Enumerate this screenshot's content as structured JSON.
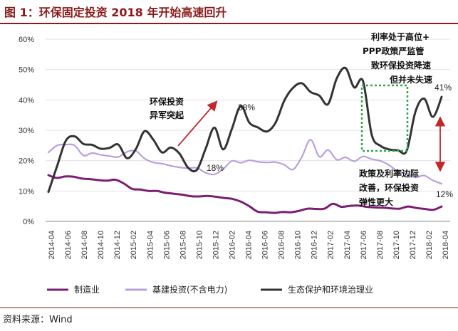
{
  "chart_data": {
    "type": "line",
    "title": "图 1：环保固定投资 2018 年开始高速回升",
    "source": "资料来源：Wind",
    "ylim": [
      0,
      60
    ],
    "yticks": [
      "0%",
      "10%",
      "20%",
      "30%",
      "40%",
      "50%",
      "60%"
    ],
    "x_tick_labels": [
      "2014-04",
      "2014-06",
      "2014-08",
      "2014-10",
      "2014-12",
      "2015-02",
      "2015-04",
      "2015-06",
      "2015-08",
      "2015-10",
      "2015-12",
      "2016-02",
      "2016-04",
      "2016-06",
      "2016-08",
      "2016-10",
      "2016-12",
      "2017-02",
      "2017-04",
      "2017-06",
      "2017-08",
      "2017-10",
      "2017-12",
      "2018-02",
      "2018-04"
    ],
    "series": [
      {
        "name": "制造业",
        "color": "#7a1f73",
        "values": [
          15.2,
          14.3,
          14.8,
          14.7,
          14.1,
          13.9,
          13.6,
          13.4,
          13.7,
          12.5,
          10.7,
          10.5,
          10.0,
          10.0,
          9.4,
          9.1,
          8.8,
          8.3,
          8.2,
          8.4,
          8.1,
          7.7,
          7.4,
          6.5,
          5.0,
          3.2,
          3.0,
          2.8,
          3.1,
          3.0,
          3.5,
          4.2,
          4.1,
          4.2,
          5.8,
          4.8,
          5.1,
          5.2,
          4.8,
          4.6,
          4.5,
          4.3,
          4.2,
          4.9,
          4.4,
          4.1,
          3.8,
          4.9
        ]
      },
      {
        "name": "基建投资(不含电力)",
        "color": "#b9a0dd",
        "values": [
          22.7,
          25.0,
          25.3,
          25.0,
          21.7,
          22.5,
          21.9,
          21.5,
          21.2,
          22.9,
          23.2,
          20.7,
          19.4,
          19.0,
          18.3,
          17.8,
          17.5,
          17.6,
          16.0,
          15.5,
          17.2,
          19.9,
          19.3,
          20.1,
          19.6,
          19.4,
          19.5,
          18.6,
          17.1,
          21.2,
          26.9,
          21.3,
          23.5,
          20.3,
          21.1,
          19.8,
          21.4,
          20.5,
          19.9,
          18.5,
          16.4,
          15.7,
          14.5,
          15.1,
          13.5,
          12.4
        ]
      },
      {
        "name": "生态保护和环境治理业",
        "color": "#333333",
        "values": [
          9.7,
          18.3,
          26.6,
          28.0,
          25.5,
          25.2,
          23.9,
          24.2,
          25.3,
          20.8,
          23.8,
          29.7,
          26.9,
          22.7,
          24.3,
          22.3,
          17.6,
          17.0,
          24.0,
          30.9,
          23.7,
          30.5,
          38.0,
          32.5,
          30.9,
          29.6,
          32.5,
          39.8,
          44.0,
          45.5,
          42.6,
          41.4,
          38.6,
          47.1,
          50.5,
          44.1,
          46.2,
          28.5,
          24.9,
          23.7,
          23.4,
          23.2,
          36.1,
          40.4,
          34.4,
          41.0
        ]
      }
    ],
    "annotations": {
      "env_surge": [
        "环保投资",
        "异军突起"
      ],
      "policy_slowdown": [
        "利率处于高位+",
        "PPP政策严监管",
        "致环保投资降速",
        "但并未失速"
      ],
      "policy_rebound": [
        "政策及利率边际",
        "改善，环保投资",
        "弹性更大"
      ],
      "labels": {
        "pct38": "38%",
        "pct18": "18%",
        "pct41": "41%",
        "pct12": "12%"
      }
    }
  }
}
